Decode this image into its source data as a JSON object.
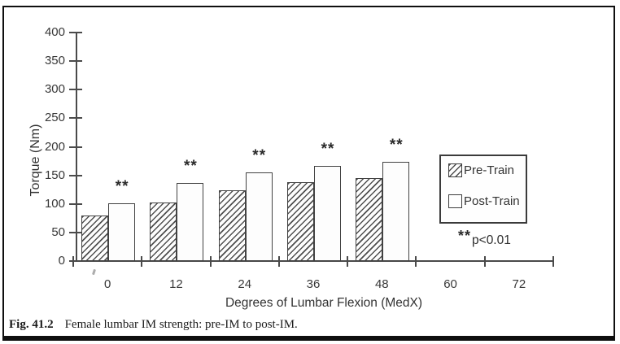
{
  "figure": {
    "caption_label": "Fig. 41.2",
    "caption_text": "Female lumbar IM strength: pre-IM to post-IM."
  },
  "chart_data": {
    "type": "bar",
    "title": "",
    "xlabel": "Degrees of Lumbar Flexion (MedX)",
    "ylabel": "Torque (Nm)",
    "x_tick_labels": [
      "0",
      "12",
      "24",
      "36",
      "48",
      "60",
      "72"
    ],
    "bar_group_labels": [
      "0",
      "12",
      "24",
      "36",
      "48"
    ],
    "series": [
      {
        "name": "Pre-Train",
        "style": "hatched",
        "values": [
          80,
          103,
          124,
          138,
          145
        ]
      },
      {
        "name": "Post-Train",
        "style": "open",
        "values": [
          101,
          136,
          155,
          167,
          173
        ]
      }
    ],
    "ylim": [
      0,
      400
    ],
    "ytick_step": 50,
    "yticks": [
      0,
      50,
      100,
      150,
      200,
      250,
      300,
      350,
      400
    ],
    "grid": false,
    "legend_position": "inside-right",
    "legend_entries": [
      "Pre-Train",
      "Post-Train"
    ],
    "sig_markers_per_group": [
      "**",
      "**",
      "**",
      "**",
      "**"
    ],
    "significance": {
      "marker": "**",
      "note": "p<0.01"
    }
  },
  "colors": {
    "ink": "#3a3a3a",
    "axis": "#4a4a4a",
    "paper": "#ffffff",
    "open_bar_fill": "#fdfdfd"
  }
}
